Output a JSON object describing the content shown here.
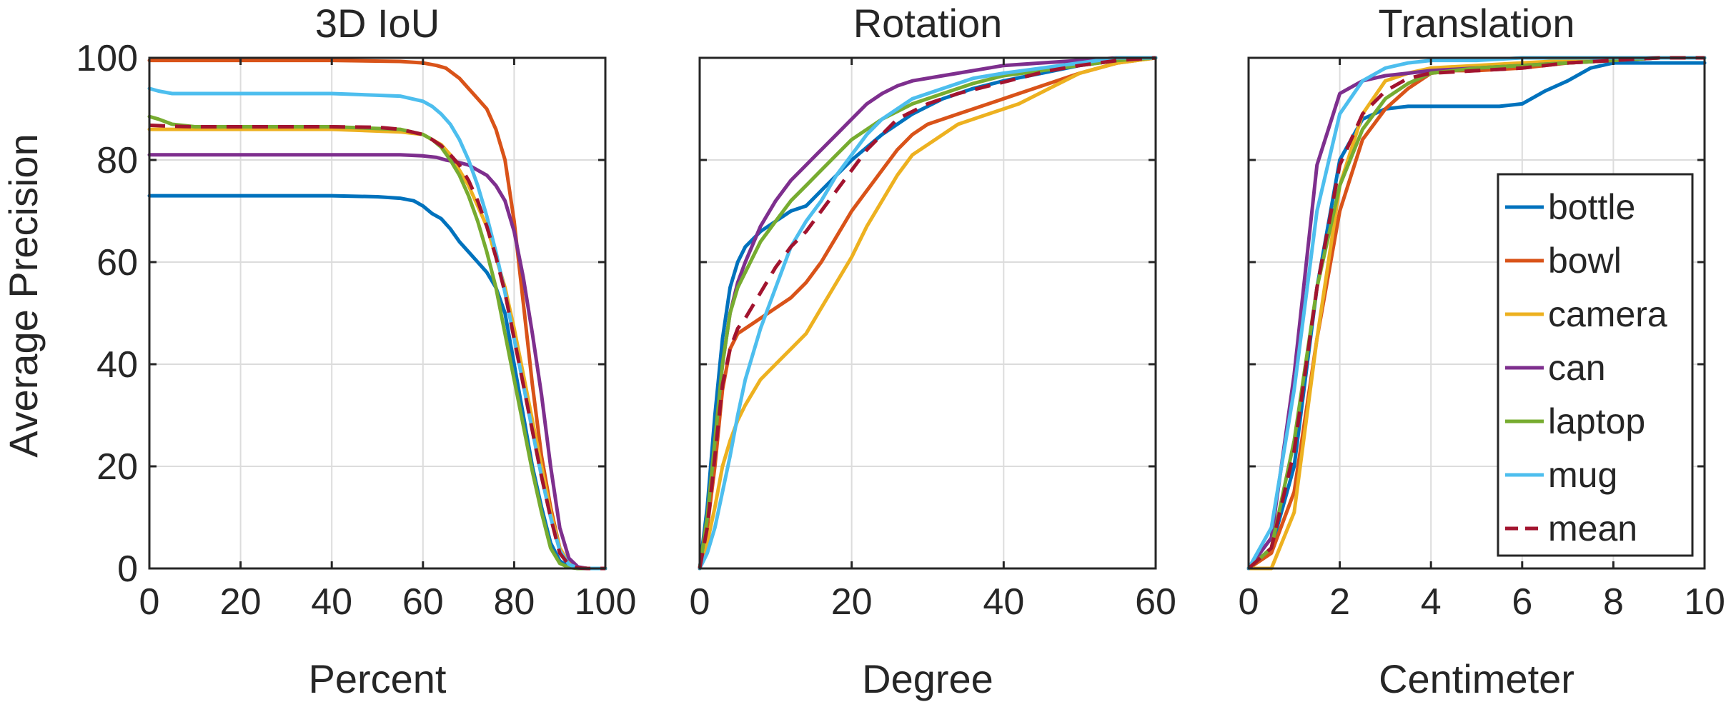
{
  "figure": {
    "ylabel": "Average Precision"
  },
  "chart_data": [
    {
      "type": "line",
      "title": "3D IoU",
      "xlabel": "Percent",
      "ylabel": "Average Precision",
      "xlim": [
        0,
        100
      ],
      "ylim": [
        0,
        100
      ],
      "xticks": [
        0,
        20,
        40,
        60,
        80,
        100
      ],
      "yticks": [
        0,
        20,
        40,
        60,
        80,
        100
      ],
      "grid": true,
      "series": [
        {
          "name": "bottle",
          "color": "#0072BD",
          "dashed": false,
          "x": [
            0,
            10,
            20,
            30,
            40,
            50,
            55,
            58,
            60,
            62,
            64,
            66,
            68,
            70,
            72,
            74,
            76,
            78,
            80,
            82,
            84,
            86,
            88,
            90,
            92,
            94,
            96,
            100
          ],
          "y": [
            73,
            73,
            73,
            73,
            73,
            72.8,
            72.5,
            72,
            71,
            69.5,
            68.5,
            66.5,
            64,
            62,
            60,
            58,
            55,
            50,
            40,
            30,
            20,
            12,
            5,
            1.5,
            0.3,
            0,
            0,
            0
          ]
        },
        {
          "name": "bowl",
          "color": "#D95319",
          "dashed": false,
          "x": [
            0,
            20,
            40,
            55,
            60,
            63,
            65,
            68,
            70,
            72,
            74,
            76,
            78,
            80,
            82,
            84,
            86,
            88,
            90,
            92,
            94,
            96,
            100
          ],
          "y": [
            99.5,
            99.5,
            99.5,
            99.3,
            99,
            98.5,
            98,
            96,
            94,
            92,
            90,
            86,
            80,
            68,
            52,
            36,
            22,
            12,
            4,
            1,
            0.2,
            0,
            0
          ]
        },
        {
          "name": "camera",
          "color": "#EDB120",
          "dashed": false,
          "x": [
            0,
            20,
            40,
            55,
            60,
            62,
            64,
            66,
            68,
            70,
            72,
            74,
            76,
            78,
            80,
            82,
            84,
            86,
            88,
            90,
            92,
            94,
            96,
            100
          ],
          "y": [
            86,
            86,
            86,
            85.5,
            85,
            84,
            83,
            81,
            78,
            75,
            71,
            67,
            61,
            55,
            47,
            38,
            29,
            20,
            11,
            4,
            1,
            0.2,
            0,
            0
          ]
        },
        {
          "name": "can",
          "color": "#7E2F8E",
          "dashed": false,
          "x": [
            0,
            20,
            40,
            55,
            60,
            63,
            65,
            68,
            70,
            72,
            74,
            76,
            78,
            80,
            82,
            84,
            86,
            88,
            90,
            92,
            94,
            96,
            100
          ],
          "y": [
            81,
            81,
            81,
            81,
            80.8,
            80.5,
            80,
            79.5,
            79,
            78,
            77,
            75,
            72,
            66,
            57,
            46,
            34,
            20,
            8,
            2,
            0.3,
            0,
            0
          ]
        },
        {
          "name": "laptop",
          "color": "#77AC30",
          "dashed": false,
          "x": [
            0,
            2,
            5,
            10,
            20,
            40,
            55,
            60,
            62,
            64,
            66,
            68,
            70,
            72,
            74,
            76,
            78,
            80,
            82,
            84,
            86,
            88,
            90,
            92,
            94,
            96,
            100
          ],
          "y": [
            88.5,
            88,
            87,
            86.5,
            86.5,
            86.5,
            86,
            85,
            84,
            82.5,
            80,
            77,
            73,
            68,
            62,
            55,
            46,
            37,
            28,
            19,
            11,
            4,
            1,
            0.2,
            0,
            0,
            0
          ]
        },
        {
          "name": "mug",
          "color": "#4DBEEE",
          "dashed": false,
          "x": [
            0,
            2,
            5,
            10,
            20,
            40,
            55,
            60,
            62,
            64,
            66,
            68,
            70,
            72,
            74,
            76,
            78,
            80,
            82,
            84,
            86,
            88,
            90,
            92,
            94,
            96,
            100
          ],
          "y": [
            94,
            93.5,
            93,
            93,
            93,
            93,
            92.5,
            91.5,
            90.5,
            89,
            87,
            84,
            80,
            75,
            69,
            62,
            54,
            45,
            36,
            27,
            18,
            10,
            3.5,
            0.8,
            0.1,
            0,
            0
          ]
        },
        {
          "name": "mean",
          "color": "#A2142F",
          "dashed": true,
          "x": [
            0,
            5,
            10,
            20,
            40,
            50,
            55,
            60,
            62,
            64,
            66,
            68,
            70,
            72,
            74,
            76,
            78,
            80,
            82,
            84,
            86,
            88,
            90,
            92,
            94,
            96,
            100
          ],
          "y": [
            86.8,
            86.6,
            86.5,
            86.5,
            86.5,
            86.4,
            86,
            85,
            84,
            82.8,
            81,
            79,
            76,
            72,
            67,
            61,
            54,
            45,
            36,
            27,
            18,
            10,
            3,
            0.7,
            0.1,
            0,
            0
          ]
        }
      ]
    },
    {
      "type": "line",
      "title": "Rotation",
      "xlabel": "Degree",
      "xlim": [
        0,
        60
      ],
      "ylim": [
        0,
        100
      ],
      "xticks": [
        0,
        20,
        40,
        60
      ],
      "yticks": [
        0,
        20,
        40,
        60,
        80,
        100
      ],
      "grid": true,
      "series": [
        {
          "name": "bottle",
          "color": "#0072BD",
          "dashed": false,
          "x": [
            0,
            1,
            2,
            3,
            4,
            5,
            6,
            8,
            10,
            12,
            14,
            16,
            18,
            20,
            24,
            28,
            32,
            36,
            40,
            45,
            50,
            55,
            60
          ],
          "y": [
            0,
            12,
            30,
            45,
            55,
            60,
            63,
            66,
            68,
            70,
            71,
            74,
            77,
            80,
            85,
            89,
            92,
            94,
            95.5,
            97,
            98.5,
            99.5,
            100
          ]
        },
        {
          "name": "bowl",
          "color": "#D95319",
          "dashed": false,
          "x": [
            0,
            1,
            2,
            3,
            4,
            5,
            6,
            8,
            10,
            12,
            14,
            16,
            18,
            20,
            22,
            24,
            26,
            28,
            30,
            34,
            38,
            42,
            46,
            50,
            55,
            60
          ],
          "y": [
            0,
            8,
            20,
            35,
            43,
            46,
            47,
            49,
            51,
            53,
            56,
            60,
            65,
            70,
            74,
            78,
            82,
            85,
            87,
            89,
            91,
            93,
            95,
            97,
            99,
            100
          ]
        },
        {
          "name": "camera",
          "color": "#EDB120",
          "dashed": false,
          "x": [
            0,
            1,
            2,
            3,
            4,
            5,
            6,
            8,
            10,
            12,
            14,
            16,
            18,
            20,
            22,
            24,
            26,
            28,
            30,
            34,
            38,
            42,
            46,
            50,
            55,
            60
          ],
          "y": [
            0,
            5,
            12,
            20,
            25,
            29,
            32,
            37,
            40,
            43,
            46,
            51,
            56,
            61,
            67,
            72,
            77,
            81,
            83,
            87,
            89,
            91,
            94,
            97,
            99,
            100
          ]
        },
        {
          "name": "can",
          "color": "#7E2F8E",
          "dashed": false,
          "x": [
            0,
            1,
            2,
            3,
            4,
            5,
            6,
            8,
            10,
            12,
            14,
            16,
            18,
            20,
            22,
            24,
            26,
            28,
            32,
            36,
            40,
            45,
            50,
            55,
            60
          ],
          "y": [
            0,
            10,
            25,
            40,
            50,
            56,
            60,
            67,
            72,
            76,
            79,
            82,
            85,
            88,
            91,
            93,
            94.5,
            95.5,
            96.5,
            97.5,
            98.5,
            99,
            99.5,
            100,
            100
          ]
        },
        {
          "name": "laptop",
          "color": "#77AC30",
          "dashed": false,
          "x": [
            0,
            1,
            2,
            3,
            4,
            5,
            6,
            8,
            10,
            12,
            14,
            16,
            18,
            20,
            24,
            28,
            32,
            36,
            40,
            45,
            50,
            55,
            60
          ],
          "y": [
            0,
            10,
            25,
            40,
            50,
            55,
            58,
            64,
            68,
            72,
            75,
            78,
            81,
            84,
            88,
            91,
            93,
            95,
            96.5,
            97.5,
            98.5,
            99.5,
            100
          ]
        },
        {
          "name": "mug",
          "color": "#4DBEEE",
          "dashed": false,
          "x": [
            0,
            1,
            2,
            3,
            4,
            5,
            6,
            8,
            10,
            12,
            14,
            16,
            18,
            20,
            22,
            24,
            26,
            28,
            32,
            36,
            40,
            45,
            50,
            55,
            60
          ],
          "y": [
            0,
            3,
            8,
            15,
            22,
            30,
            37,
            47,
            55,
            63,
            68,
            72,
            77,
            81,
            85,
            88,
            90,
            92,
            94,
            96,
            97,
            98,
            99,
            100,
            100
          ]
        },
        {
          "name": "mean",
          "color": "#A2142F",
          "dashed": true,
          "x": [
            0,
            1,
            2,
            3,
            4,
            5,
            6,
            8,
            10,
            12,
            14,
            16,
            18,
            20,
            22,
            24,
            26,
            28,
            30,
            34,
            38,
            42,
            46,
            50,
            55,
            60
          ],
          "y": [
            0,
            8,
            22,
            36,
            43,
            47,
            49,
            54,
            59,
            63,
            66,
            70,
            74,
            78,
            82,
            85,
            88,
            89.5,
            91,
            93,
            94.5,
            96,
            97.5,
            98.5,
            99.5,
            100
          ]
        }
      ]
    },
    {
      "type": "line",
      "title": "Translation",
      "xlabel": "Centimeter",
      "xlim": [
        0,
        10
      ],
      "ylim": [
        0,
        100
      ],
      "xticks": [
        0,
        2,
        4,
        6,
        8,
        10
      ],
      "yticks": [
        0,
        20,
        40,
        60,
        80,
        100
      ],
      "grid": true,
      "legend": "right",
      "series": [
        {
          "name": "bottle",
          "color": "#0072BD",
          "dashed": false,
          "x": [
            0,
            0.5,
            1,
            1.5,
            2,
            2.5,
            3,
            3.5,
            4,
            5,
            5.5,
            6,
            6.5,
            7,
            7.5,
            8,
            8.5,
            9,
            10
          ],
          "y": [
            0,
            4,
            20,
            55,
            80,
            88,
            90,
            90.5,
            90.5,
            90.5,
            90.5,
            91,
            93.5,
            95.5,
            98,
            99,
            99,
            99,
            99
          ]
        },
        {
          "name": "bowl",
          "color": "#D95319",
          "dashed": false,
          "x": [
            0,
            0.5,
            1,
            1.5,
            2,
            2.5,
            3,
            3.5,
            4,
            4.5,
            5,
            6,
            7,
            8,
            9,
            10
          ],
          "y": [
            0,
            3,
            15,
            45,
            70,
            84,
            90,
            94,
            97,
            97.5,
            97.5,
            98,
            99,
            99.5,
            100,
            100
          ]
        },
        {
          "name": "camera",
          "color": "#EDB120",
          "dashed": false,
          "x": [
            0,
            0.3,
            0.5,
            1,
            1.5,
            2,
            2.5,
            3,
            3.5,
            4,
            5,
            6,
            7,
            8,
            9,
            10
          ],
          "y": [
            0,
            0,
            0,
            11,
            45,
            75,
            89,
            95.5,
            97,
            98,
            98.5,
            99,
            99.5,
            100,
            100,
            100
          ]
        },
        {
          "name": "can",
          "color": "#7E2F8E",
          "dashed": false,
          "x": [
            0,
            0.5,
            1,
            1.5,
            2,
            2.5,
            3,
            3.5,
            4,
            5,
            6,
            7,
            8,
            9,
            10
          ],
          "y": [
            0,
            6,
            38,
            79,
            93,
            95.5,
            96.5,
            97,
            97.5,
            98,
            98.5,
            99,
            99.5,
            100,
            100
          ]
        },
        {
          "name": "laptop",
          "color": "#77AC30",
          "dashed": false,
          "x": [
            0,
            0.5,
            1,
            1.5,
            2,
            2.5,
            3,
            3.5,
            4,
            5,
            6,
            7,
            8,
            9,
            10
          ],
          "y": [
            0,
            4,
            25,
            55,
            75,
            86,
            92,
            95,
            97,
            98,
            98.5,
            99,
            99.5,
            100,
            100
          ]
        },
        {
          "name": "mug",
          "color": "#4DBEEE",
          "dashed": false,
          "x": [
            0,
            0.5,
            1,
            1.5,
            2,
            2.5,
            3,
            3.5,
            4,
            5,
            6,
            7,
            8,
            9,
            10
          ],
          "y": [
            0,
            8,
            35,
            70,
            89,
            95.5,
            98,
            99,
            99.5,
            99.5,
            100,
            100,
            100,
            100,
            100
          ]
        },
        {
          "name": "mean",
          "color": "#A2142F",
          "dashed": true,
          "x": [
            0,
            0.5,
            1,
            1.5,
            2,
            2.5,
            3,
            3.5,
            4,
            5,
            6,
            7,
            8,
            9,
            10
          ],
          "y": [
            0,
            4,
            23,
            55,
            79,
            89,
            93.5,
            96,
            97,
            97.5,
            98,
            99,
            99.5,
            100,
            100
          ]
        }
      ]
    }
  ]
}
